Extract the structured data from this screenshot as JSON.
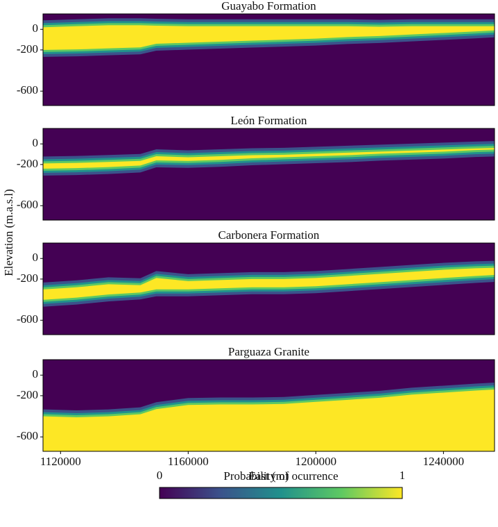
{
  "ylabel": "Elevation (m.a.s.l)",
  "colorbar": {
    "title": "Probability of ocurrence",
    "lim": [
      0,
      1
    ],
    "ticks": [
      0,
      1
    ],
    "colors": [
      "#440154",
      "#3b528b",
      "#21918c",
      "#5ec962",
      "#fde725"
    ]
  },
  "chart_data": [
    {
      "type": "band",
      "title": "Guayabo Formation",
      "x": [
        1115000,
        1125000,
        1135000,
        1145000,
        1150000,
        1160000,
        1170000,
        1180000,
        1190000,
        1200000,
        1210000,
        1220000,
        1230000,
        1240000,
        1250000,
        1256000
      ],
      "top": [
        20,
        30,
        40,
        40,
        35,
        30,
        30,
        30,
        30,
        30,
        30,
        25,
        30,
        30,
        30,
        30
      ],
      "bottom": [
        -200,
        -195,
        -185,
        -175,
        -140,
        -130,
        -120,
        -110,
        -100,
        -90,
        -75,
        -65,
        -50,
        -35,
        -20,
        -10
      ],
      "xlim": [
        1114500,
        1256000
      ],
      "ylim": [
        -740,
        150
      ],
      "yticks": [
        0,
        -200,
        -600
      ]
    },
    {
      "type": "band",
      "title": "León Formation",
      "x": [
        1115000,
        1125000,
        1135000,
        1145000,
        1150000,
        1160000,
        1170000,
        1180000,
        1190000,
        1200000,
        1210000,
        1220000,
        1230000,
        1240000,
        1250000,
        1256000
      ],
      "top": [
        -190,
        -185,
        -175,
        -165,
        -120,
        -130,
        -120,
        -110,
        -105,
        -95,
        -85,
        -75,
        -65,
        -55,
        -45,
        -40
      ],
      "bottom": [
        -240,
        -235,
        -225,
        -210,
        -160,
        -165,
        -155,
        -140,
        -130,
        -120,
        -110,
        -95,
        -85,
        -75,
        -60,
        -55
      ],
      "xlim": [
        1114500,
        1256000
      ],
      "ylim": [
        -740,
        150
      ],
      "yticks": [
        0,
        -200,
        -600
      ]
    },
    {
      "type": "band",
      "title": "Carbonera Formation",
      "x": [
        1115000,
        1125000,
        1135000,
        1145000,
        1150000,
        1160000,
        1170000,
        1180000,
        1190000,
        1200000,
        1210000,
        1220000,
        1230000,
        1240000,
        1250000,
        1256000
      ],
      "top": [
        -300,
        -280,
        -250,
        -260,
        -190,
        -220,
        -210,
        -200,
        -200,
        -190,
        -170,
        -150,
        -130,
        -110,
        -95,
        -90
      ],
      "bottom": [
        -400,
        -380,
        -350,
        -330,
        -300,
        -300,
        -290,
        -280,
        -280,
        -270,
        -250,
        -230,
        -210,
        -190,
        -170,
        -160
      ],
      "xlim": [
        1114500,
        1256000
      ],
      "ylim": [
        -740,
        150
      ],
      "yticks": [
        0,
        -200,
        -600
      ]
    },
    {
      "type": "band",
      "title": "Parguaza Granite",
      "x": [
        1115000,
        1125000,
        1135000,
        1145000,
        1150000,
        1160000,
        1170000,
        1180000,
        1190000,
        1200000,
        1210000,
        1220000,
        1230000,
        1240000,
        1250000,
        1256000
      ],
      "top": [
        -400,
        -410,
        -400,
        -380,
        -330,
        -290,
        -285,
        -285,
        -280,
        -260,
        -240,
        -220,
        -190,
        -170,
        -150,
        -140
      ],
      "xlim": [
        1114500,
        1256000
      ],
      "ylim": [
        -740,
        150
      ],
      "yticks": [
        0,
        -200,
        -600
      ],
      "xticks": [
        1120000,
        1160000,
        1200000,
        1240000
      ],
      "xlabel": "East (m)"
    }
  ]
}
